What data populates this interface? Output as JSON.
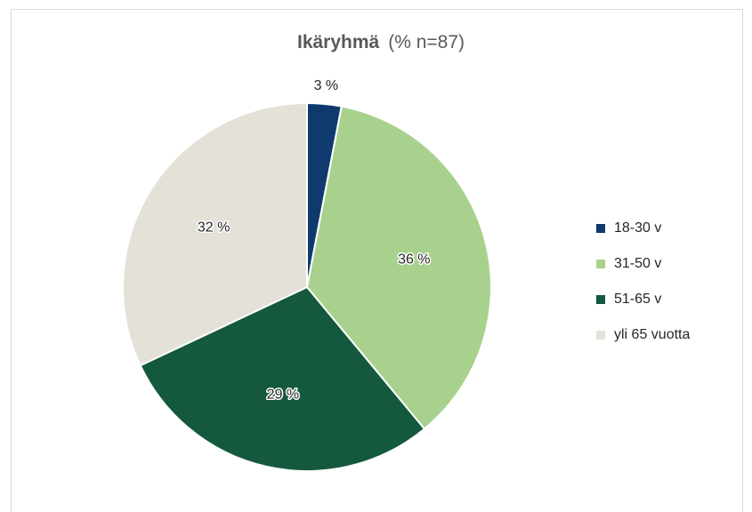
{
  "chart_data": {
    "type": "pie",
    "title": "Ikäryhmä",
    "subtitle": "(% n=87)",
    "categories": [
      "18-30 v",
      "31-50 v",
      "51-65 v",
      "yli 65 vuotta"
    ],
    "values": [
      3,
      36,
      29,
      32
    ],
    "value_labels": [
      "3 %",
      "36 %",
      "29 %",
      "32 %"
    ],
    "colors": [
      "#0e3a6e",
      "#a9d18e",
      "#14593e",
      "#e4e1d9"
    ],
    "legend": "right"
  }
}
